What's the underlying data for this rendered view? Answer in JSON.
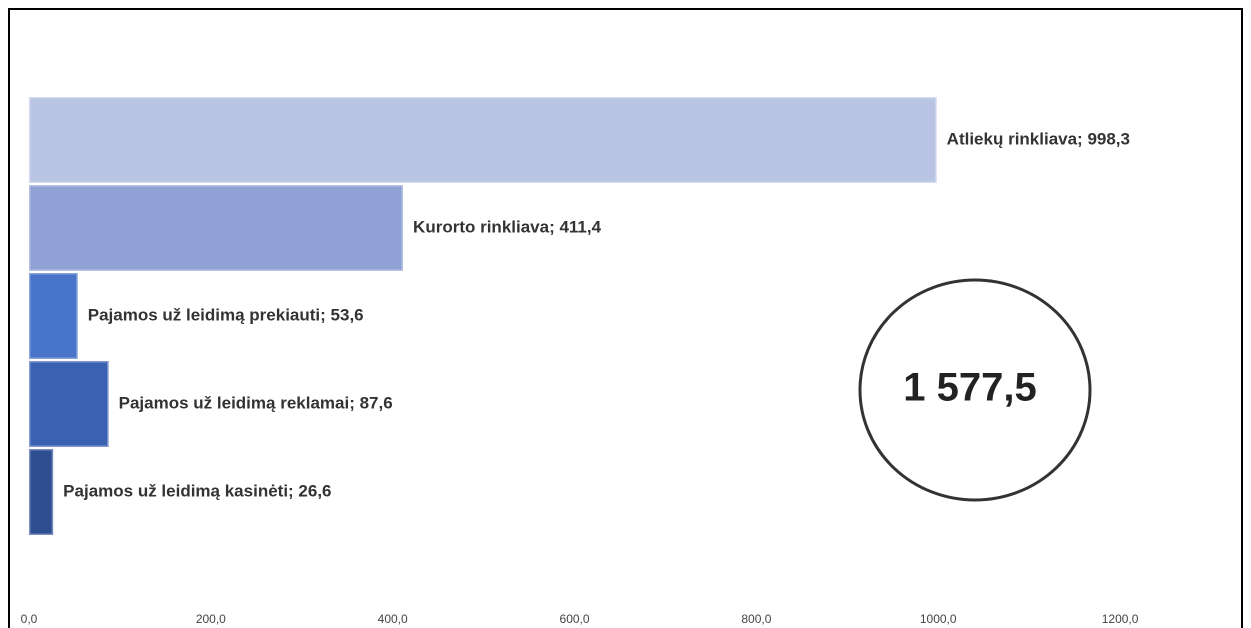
{
  "chart_data": {
    "type": "bar",
    "orientation": "horizontal",
    "values": [
      998.3,
      411.4,
      53.6,
      87.6,
      26.6
    ],
    "value_labels": [
      "Atliekų rinkliava; 998,3",
      "Kurorto rinkliava; 411,4",
      "Pajamos už leidimą prekiauti; 53,6",
      "Pajamos už leidimą reklamai; 87,6",
      "Pajamos už leidimą kasinėti; 26,6"
    ],
    "colors": [
      "#b9c3e4",
      "#8fa1d5",
      "#4874ca",
      "#3b62b2",
      "#2f4e92"
    ],
    "xlim": [
      0,
      1344
    ],
    "xticks": [
      {
        "value": 0,
        "label": "0,0"
      },
      {
        "value": 200,
        "label": "200,0"
      },
      {
        "value": 400,
        "label": "400,0"
      },
      {
        "value": 600,
        "label": "600,0"
      },
      {
        "value": 800,
        "label": "800,0"
      },
      {
        "value": 1000,
        "label": "1000,0"
      },
      {
        "value": 1200,
        "label": "1200,0"
      }
    ],
    "grid": false,
    "annotation": "1 577,5"
  }
}
